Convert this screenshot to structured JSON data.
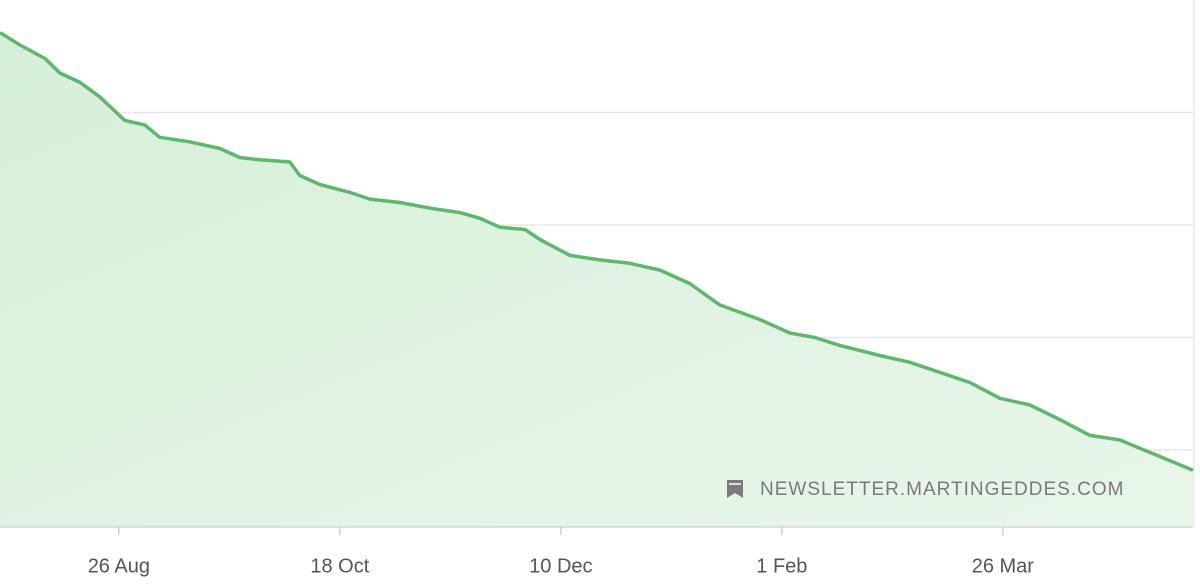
{
  "chart_data": {
    "type": "area",
    "watermark": "NEWSLETTER.MARTINGEDDES.COM",
    "x": [
      -28.5,
      -23.7,
      -17.7,
      -14.1,
      -9.4,
      -4.6,
      1.4,
      6.2,
      9.8,
      17.0,
      24.2,
      29.0,
      33.8,
      41.0,
      43.4,
      48.2,
      55.4,
      60.2,
      67.4,
      74.6,
      81.8,
      86.6,
      91.4,
      97.4,
      101.0,
      108.2,
      115.3,
      122.5,
      129.7,
      136.9,
      144.1,
      153.7,
      160.9,
      166.9,
      172.9,
      182.5,
      189.7,
      196.9,
      204.1,
      211.3,
      218.5,
      225.7,
      232.9,
      240.0,
      247.2,
      254.4,
      257.6
    ],
    "series": [
      {
        "color": "#5cb86a",
        "values": [
          4.71,
          4.6,
          4.48,
          4.35,
          4.27,
          4.14,
          3.93,
          3.89,
          3.78,
          3.74,
          3.68,
          3.6,
          3.58,
          3.56,
          3.44,
          3.36,
          3.29,
          3.23,
          3.2,
          3.15,
          3.11,
          3.06,
          2.98,
          2.96,
          2.87,
          2.73,
          2.69,
          2.66,
          2.6,
          2.48,
          2.29,
          2.16,
          2.04,
          2.0,
          1.93,
          1.84,
          1.78,
          1.69,
          1.6,
          1.46,
          1.4,
          1.27,
          1.13,
          1.09,
          0.98,
          0.87,
          0.82
        ]
      }
    ],
    "xlim": [
      -28.5,
      257.6
    ],
    "xticks": [
      {
        "value": 0,
        "label": "26 Aug"
      },
      {
        "value": 53,
        "label": "18 Oct"
      },
      {
        "value": 106,
        "label": "10 Dec"
      },
      {
        "value": 159,
        "label": "1 Feb"
      },
      {
        "value": 212,
        "label": "26 Mar"
      }
    ],
    "ylim": [
      0.316,
      5
    ],
    "yticks": [
      1,
      2,
      3,
      4
    ],
    "grid": true
  }
}
